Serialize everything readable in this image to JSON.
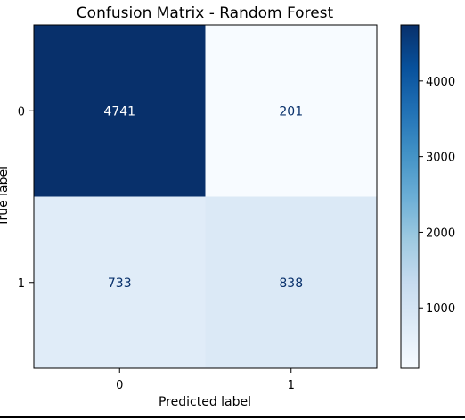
{
  "chart_data": {
    "type": "heatmap",
    "title": "Confusion Matrix - Random Forest",
    "xlabel": "Predicted label",
    "ylabel": "True label",
    "x_categories": [
      "0",
      "1"
    ],
    "y_categories": [
      "0",
      "1"
    ],
    "matrix": [
      [
        4741,
        201
      ],
      [
        733,
        838
      ]
    ],
    "colormap": "Blues",
    "colorbar": {
      "range": [
        201,
        4741
      ],
      "ticks": [
        "1000",
        "2000",
        "3000",
        "4000"
      ],
      "tick_values": [
        1000,
        2000,
        3000,
        4000
      ]
    },
    "grid": false
  }
}
